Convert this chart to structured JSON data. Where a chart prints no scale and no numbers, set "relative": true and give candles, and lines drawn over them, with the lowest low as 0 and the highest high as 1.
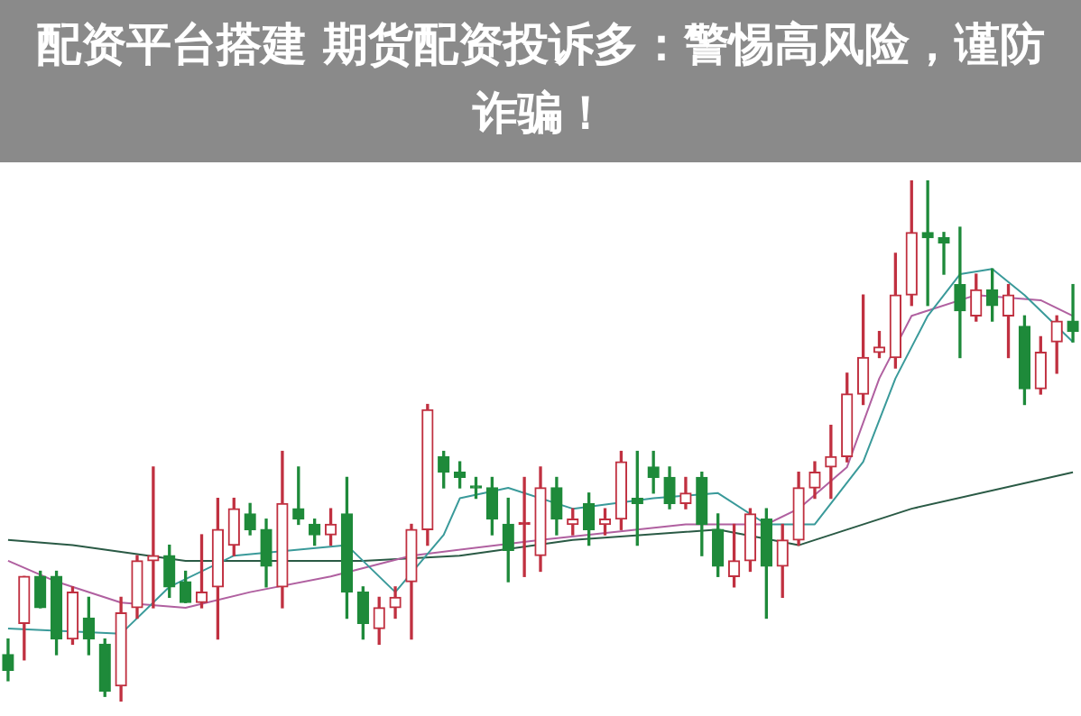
{
  "chart_data": {
    "type": "candlestick",
    "title": "配资平台搭建 期货配资投诉多：警惕高风险，谨防诈骗！",
    "relative": true,
    "categories": [
      null,
      null,
      null,
      null,
      null,
      null,
      null,
      null,
      null,
      null,
      null,
      null,
      null,
      null,
      null,
      null,
      null,
      null,
      null,
      null,
      null,
      null,
      null,
      null,
      null,
      null,
      null,
      null,
      null,
      null,
      null,
      null,
      null,
      null,
      null,
      null,
      null,
      null,
      null,
      null,
      null,
      null,
      null,
      null,
      null,
      null,
      null,
      null,
      null,
      null,
      null,
      null,
      null,
      null,
      null,
      null,
      null,
      null,
      null,
      null,
      null,
      null,
      null,
      null,
      null,
      null,
      null
    ],
    "ohlc": [
      [
        0.09,
        0.12,
        0.04,
        0.06
      ],
      [
        0.15,
        0.24,
        0.08,
        0.24
      ],
      [
        0.24,
        0.25,
        0.18,
        0.18
      ],
      [
        0.24,
        0.25,
        0.09,
        0.12
      ],
      [
        0.12,
        0.22,
        0.11,
        0.21
      ],
      [
        0.16,
        0.2,
        0.09,
        0.12
      ],
      [
        0.11,
        0.12,
        0.01,
        0.02
      ],
      [
        0.03,
        0.2,
        0,
        0.17
      ],
      [
        0.18,
        0.28,
        0.16,
        0.27
      ],
      [
        0.27,
        0.45,
        0.18,
        0.28
      ],
      [
        0.28,
        0.3,
        0.2,
        0.22
      ],
      [
        0.23,
        0.25,
        0.19,
        0.19
      ],
      [
        0.19,
        0.32,
        0.18,
        0.21
      ],
      [
        0.22,
        0.39,
        0.12,
        0.33
      ],
      [
        0.3,
        0.39,
        0.28,
        0.37
      ],
      [
        0.36,
        0.38,
        0.32,
        0.33
      ],
      [
        0.33,
        0.35,
        0.22,
        0.26
      ],
      [
        0.22,
        0.48,
        0.18,
        0.38
      ],
      [
        0.37,
        0.45,
        0.34,
        0.35
      ],
      [
        0.34,
        0.35,
        0.3,
        0.32
      ],
      [
        0.32,
        0.37,
        0.3,
        0.34
      ],
      [
        0.36,
        0.43,
        0.16,
        0.21
      ],
      [
        0.21,
        0.22,
        0.12,
        0.15
      ],
      [
        0.14,
        0.2,
        0.11,
        0.18
      ],
      [
        0.18,
        0.22,
        0.16,
        0.2
      ],
      [
        0.23,
        0.34,
        0.12,
        0.33
      ],
      [
        0.33,
        0.57,
        0.3,
        0.56
      ],
      [
        0.47,
        0.48,
        0.41,
        0.44
      ],
      [
        0.44,
        0.46,
        0.41,
        0.43
      ],
      [
        0.41,
        0.43,
        0.39,
        0.41
      ],
      [
        0.41,
        0.43,
        0.32,
        0.35
      ],
      [
        0.34,
        0.39,
        0.23,
        0.29
      ],
      [
        0.34,
        0.43,
        0.24,
        0.34
      ],
      [
        0.28,
        0.45,
        0.25,
        0.41
      ],
      [
        0.41,
        0.43,
        0.32,
        0.35
      ],
      [
        0.34,
        0.37,
        0.32,
        0.35
      ],
      [
        0.38,
        0.4,
        0.3,
        0.33
      ],
      [
        0.34,
        0.37,
        0.32,
        0.35
      ],
      [
        0.35,
        0.48,
        0.33,
        0.46
      ],
      [
        0.39,
        0.48,
        0.3,
        0.38
      ],
      [
        0.45,
        0.48,
        0.4,
        0.43
      ],
      [
        0.43,
        0.45,
        0.37,
        0.38
      ],
      [
        0.38,
        0.43,
        0.37,
        0.4
      ],
      [
        0.43,
        0.44,
        0.28,
        0.34
      ],
      [
        0.33,
        0.36,
        0.24,
        0.26
      ],
      [
        0.24,
        0.34,
        0.22,
        0.27
      ],
      [
        0.27,
        0.37,
        0.25,
        0.36
      ],
      [
        0.35,
        0.37,
        0.16,
        0.26
      ],
      [
        0.26,
        0.34,
        0.2,
        0.31
      ],
      [
        0.31,
        0.44,
        0.3,
        0.41
      ],
      [
        0.41,
        0.46,
        0.39,
        0.44
      ],
      [
        0.45,
        0.53,
        0.39,
        0.47
      ],
      [
        0.47,
        0.63,
        0.46,
        0.59
      ],
      [
        0.59,
        0.78,
        0.57,
        0.66
      ],
      [
        0.67,
        0.71,
        0.66,
        0.68
      ],
      [
        0.66,
        0.86,
        0.64,
        0.78
      ],
      [
        0.78,
        1,
        0.76,
        0.9
      ],
      [
        0.9,
        1,
        0.76,
        0.89
      ],
      [
        0.89,
        0.9,
        0.82,
        0.88
      ],
      [
        0.8,
        0.91,
        0.66,
        0.75
      ],
      [
        0.74,
        0.82,
        0.73,
        0.79
      ],
      [
        0.79,
        0.83,
        0.73,
        0.76
      ],
      [
        0.74,
        0.8,
        0.66,
        0.78
      ],
      [
        0.72,
        0.74,
        0.57,
        0.6
      ],
      [
        0.6,
        0.7,
        0.59,
        0.67
      ],
      [
        0.69,
        0.74,
        0.63,
        0.73
      ],
      [
        0.73,
        0.8,
        0.69,
        0.71
      ]
    ],
    "colors": [
      "#1e8a3a",
      "#c03040",
      "#1e8a3a",
      "#1e8a3a",
      "#c03040",
      "#1e8a3a",
      "#1e8a3a",
      "#c03040",
      "#c03040",
      "#c03040",
      "#1e8a3a",
      "#1e8a3a",
      "#c03040",
      "#c03040",
      "#c03040",
      "#1e8a3a",
      "#1e8a3a",
      "#c03040",
      "#1e8a3a",
      "#1e8a3a",
      "#c03040",
      "#1e8a3a",
      "#1e8a3a",
      "#c03040",
      "#c03040",
      "#c03040",
      "#c03040",
      "#1e8a3a",
      "#1e8a3a",
      "#1e8a3a",
      "#1e8a3a",
      "#1e8a3a",
      "#c03040",
      "#c03040",
      "#1e8a3a",
      "#c03040",
      "#1e8a3a",
      "#c03040",
      "#c03040",
      "#1e8a3a",
      "#1e8a3a",
      "#1e8a3a",
      "#c03040",
      "#1e8a3a",
      "#1e8a3a",
      "#c03040",
      "#c03040",
      "#1e8a3a",
      "#c03040",
      "#c03040",
      "#c03040",
      "#c03040",
      "#c03040",
      "#c03040",
      "#c03040",
      "#c03040",
      "#c03040",
      "#1e8a3a",
      "#1e8a3a",
      "#1e8a3a",
      "#c03040",
      "#1e8a3a",
      "#c03040",
      "#1e8a3a",
      "#c03040",
      "#c03040",
      "#1e8a3a"
    ],
    "series": [
      {
        "type": "line",
        "color": "#3a9a9a",
        "values": [
          0.14,
          null,
          null,
          null,
          null,
          null,
          null,
          0.13,
          null,
          null,
          0.22,
          null,
          null,
          null,
          0.28,
          null,
          null,
          null,
          null,
          null,
          null,
          0.3,
          null,
          null,
          0.21,
          null,
          null,
          0.32,
          0.39,
          null,
          null,
          0.41,
          null,
          null,
          null,
          0.37,
          null,
          null,
          null,
          null,
          0.39,
          null,
          null,
          null,
          0.4,
          null,
          null,
          0.34,
          null,
          null,
          0.34,
          null,
          null,
          0.46,
          null,
          0.62,
          null,
          0.74,
          null,
          0.82,
          null,
          0.83,
          null,
          0.78,
          null,
          null,
          0.69
        ]
      },
      {
        "type": "line",
        "color": "#b060a0",
        "values": [
          0.27,
          null,
          null,
          0.23,
          null,
          null,
          null,
          0.19,
          null,
          null,
          null,
          0.18,
          null,
          null,
          null,
          0.21,
          null,
          null,
          null,
          null,
          0.24,
          null,
          null,
          null,
          null,
          0.28,
          null,
          null,
          null,
          null,
          null,
          null,
          null,
          0.31,
          null,
          null,
          null,
          null,
          null,
          null,
          null,
          null,
          0.34,
          null,
          null,
          null,
          null,
          0.34,
          null,
          0.37,
          null,
          null,
          0.45,
          null,
          0.62,
          null,
          0.74,
          null,
          null,
          null,
          0.78,
          null,
          null,
          null,
          0.77,
          null,
          0.74
        ]
      },
      {
        "type": "line",
        "color": "#2a5a45",
        "values": [
          0.31,
          null,
          null,
          null,
          0.3,
          null,
          null,
          null,
          null,
          null,
          null,
          0.27,
          null,
          null,
          null,
          null,
          null,
          null,
          null,
          null,
          null,
          null,
          0.27,
          null,
          null,
          null,
          null,
          null,
          0.28,
          null,
          null,
          null,
          null,
          null,
          null,
          0.31,
          null,
          null,
          null,
          null,
          null,
          null,
          null,
          null,
          0.33,
          null,
          null,
          null,
          null,
          0.3,
          null,
          null,
          null,
          null,
          null,
          null,
          0.37,
          null,
          null,
          null,
          null,
          null,
          null,
          null,
          null,
          null,
          0.44
        ]
      }
    ]
  }
}
